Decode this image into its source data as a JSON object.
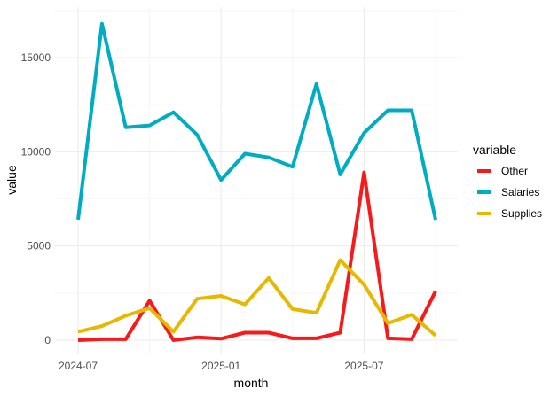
{
  "chart_data": {
    "type": "line",
    "title": "",
    "xlabel": "month",
    "ylabel": "value",
    "x": [
      "2024-07",
      "2024-08",
      "2024-09",
      "2024-10",
      "2024-11",
      "2024-12",
      "2025-01",
      "2025-02",
      "2025-03",
      "2025-04",
      "2025-05",
      "2025-06",
      "2025-07",
      "2025-08",
      "2025-09",
      "2025-10"
    ],
    "x_ticks": [
      "2024-07",
      "2025-01",
      "2025-07"
    ],
    "y_ticks": [
      0,
      5000,
      10000,
      15000
    ],
    "ylim": [
      -700,
      17500
    ],
    "grid": true,
    "legend": {
      "title": "variable",
      "position": "right"
    },
    "series": [
      {
        "name": "Other",
        "color": "#f8191b",
        "values": [
          0,
          50,
          50,
          2100,
          0,
          150,
          80,
          400,
          400,
          100,
          100,
          400,
          8900,
          100,
          50,
          2600
        ]
      },
      {
        "name": "Salaries",
        "color": "#00acc1",
        "values": [
          6400,
          16800,
          11300,
          11400,
          12100,
          10900,
          8500,
          9900,
          9700,
          9200,
          13600,
          8800,
          11000,
          12200,
          12200,
          6400
        ]
      },
      {
        "name": "Supplies",
        "color": "#e7b800",
        "values": [
          450,
          750,
          1300,
          1700,
          450,
          2200,
          2350,
          1900,
          3300,
          1650,
          1450,
          4250,
          2950,
          900,
          1350,
          250
        ]
      }
    ]
  }
}
